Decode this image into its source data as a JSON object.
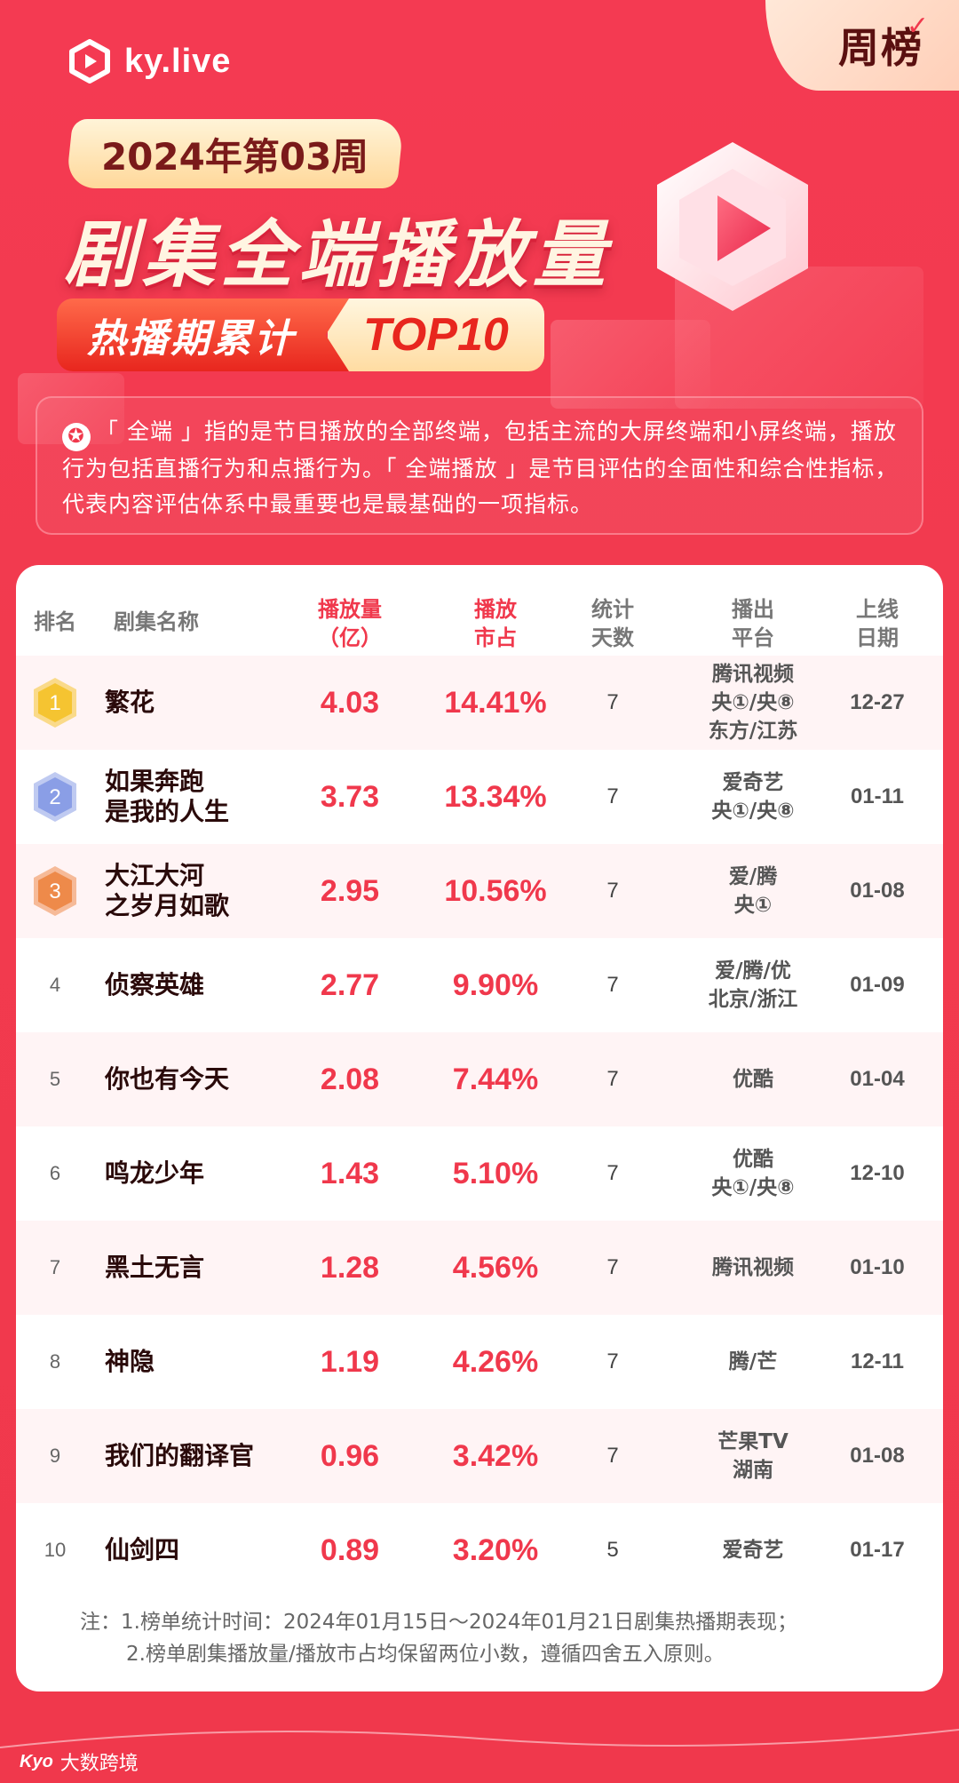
{
  "header": {
    "logo_text": "ky.live",
    "week_tag": "周榜",
    "issue": "2024年第03周",
    "title": "剧集全端播放量",
    "subtitle_left": "热播期累计",
    "subtitle_right": "TOP10"
  },
  "description": "「 全端 」指的是节目播放的全部终端，包括主流的大屏终端和小屏终端，播放行为包括直播行为和点播行为。「 全端播放 」是节目评估的全面性和综合性指标，代表内容评估体系中最重要也是最基础的一项指标。",
  "table": {
    "headers": {
      "rank": "排名",
      "name": "剧集名称",
      "views_1": "播放量",
      "views_2": "（亿）",
      "share_1": "播放",
      "share_2": "市占",
      "days_1": "统计",
      "days_2": "天数",
      "platform_1": "播出",
      "platform_2": "平台",
      "date_1": "上线",
      "date_2": "日期"
    },
    "rows": [
      {
        "rank": "1",
        "name_1": "繁花",
        "name_2": "",
        "views": "4.03",
        "share": "14.41%",
        "days": "7",
        "platform_1": "腾讯视频",
        "platform_2": "央①/央⑧",
        "platform_3": "东方/江苏",
        "date": "12-27"
      },
      {
        "rank": "2",
        "name_1": "如果奔跑",
        "name_2": "是我的人生",
        "views": "3.73",
        "share": "13.34%",
        "days": "7",
        "platform_1": "爱奇艺",
        "platform_2": "央①/央⑧",
        "platform_3": "",
        "date": "01-11"
      },
      {
        "rank": "3",
        "name_1": "大江大河",
        "name_2": "之岁月如歌",
        "views": "2.95",
        "share": "10.56%",
        "days": "7",
        "platform_1": "爱/腾",
        "platform_2": "央①",
        "platform_3": "",
        "date": "01-08"
      },
      {
        "rank": "4",
        "name_1": "侦察英雄",
        "name_2": "",
        "views": "2.77",
        "share": "9.90%",
        "days": "7",
        "platform_1": "爱/腾/优",
        "platform_2": "北京/浙江",
        "platform_3": "",
        "date": "01-09"
      },
      {
        "rank": "5",
        "name_1": "你也有今天",
        "name_2": "",
        "views": "2.08",
        "share": "7.44%",
        "days": "7",
        "platform_1": "优酷",
        "platform_2": "",
        "platform_3": "",
        "date": "01-04"
      },
      {
        "rank": "6",
        "name_1": "鸣龙少年",
        "name_2": "",
        "views": "1.43",
        "share": "5.10%",
        "days": "7",
        "platform_1": "优酷",
        "platform_2": "央①/央⑧",
        "platform_3": "",
        "date": "12-10"
      },
      {
        "rank": "7",
        "name_1": "黑土无言",
        "name_2": "",
        "views": "1.28",
        "share": "4.56%",
        "days": "7",
        "platform_1": "腾讯视频",
        "platform_2": "",
        "platform_3": "",
        "date": "01-10"
      },
      {
        "rank": "8",
        "name_1": "神隐",
        "name_2": "",
        "views": "1.19",
        "share": "4.26%",
        "days": "7",
        "platform_1": "腾/芒",
        "platform_2": "",
        "platform_3": "",
        "date": "12-11"
      },
      {
        "rank": "9",
        "name_1": "我们的翻译官",
        "name_2": "",
        "views": "0.96",
        "share": "3.42%",
        "days": "7",
        "platform_1": "芒果TV",
        "platform_2": "湖南",
        "platform_3": "",
        "date": "01-08"
      },
      {
        "rank": "10",
        "name_1": "仙剑四",
        "name_2": "",
        "views": "0.89",
        "share": "3.20%",
        "days": "5",
        "platform_1": "爱奇艺",
        "platform_2": "",
        "platform_3": "",
        "date": "01-17"
      }
    ]
  },
  "notes": {
    "line1": "注：1.榜单统计时间：2024年01月15日～2024年01月21日剧集热播期表现；",
    "line2": "2.榜单剧集播放量/播放市占均保留两位小数，遵循四舍五入原则。"
  },
  "footer": {
    "logo": "Kyo",
    "text": "大数跨境"
  },
  "colors": {
    "brand_red": "#f0384c",
    "gold": "#f5c431",
    "silver_blue": "#8a9ee6",
    "bronze": "#ee8a4a"
  }
}
